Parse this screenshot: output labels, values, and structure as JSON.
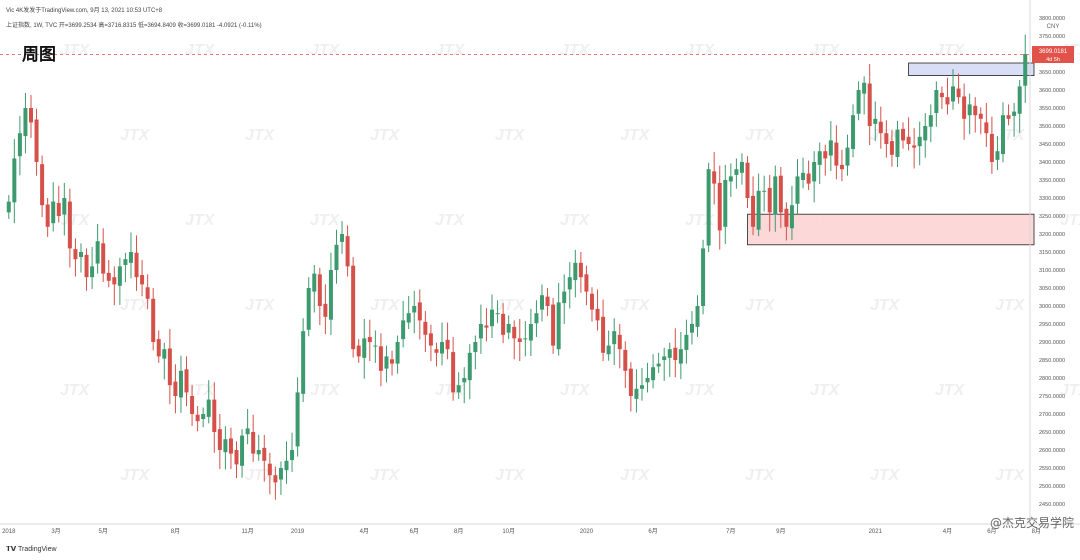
{
  "header": {
    "title": "Vic 4K发发于TradingView.com, 9月 13, 2021 10:53 UTC+8",
    "ohlc": "上证指数, 1W, TVC 开=3699.2534 高=3716.8315 低=3694.8409 收=3699.0181 -4.0921 (-0.11%)"
  },
  "chart_label": "周图",
  "price_tag": {
    "value": "3699.0181",
    "sub": "4d 5h"
  },
  "currency": "CNY",
  "footer": {
    "logo": "TradingView",
    "watermark": "@杰克交易学院"
  },
  "colors": {
    "up": "#3d9a6e",
    "down": "#d6504a",
    "zone_top": "#c9cff1",
    "zone_bottom": "#fcd4d4",
    "last_line": "#e0524a"
  },
  "chart_data": {
    "type": "candlestick",
    "ylim": [
      2400,
      3800
    ],
    "yticks": [
      2450,
      2500,
      2550,
      2600,
      2650,
      2700,
      2750,
      2800,
      2850,
      2900,
      2950,
      3000,
      3050,
      3100,
      3150,
      3200,
      3250,
      3300,
      3350,
      3400,
      3450,
      3500,
      3550,
      3600,
      3650,
      3700,
      3750,
      3800
    ],
    "xticks": [
      {
        "label": "2018",
        "x": 0
      },
      {
        "label": "3月",
        "x": 8.5
      },
      {
        "label": "5月",
        "x": 17
      },
      {
        "label": "8月",
        "x": 30
      },
      {
        "label": "11月",
        "x": 43
      },
      {
        "label": "2019",
        "x": 52
      },
      {
        "label": "4月",
        "x": 64
      },
      {
        "label": "6月",
        "x": 73
      },
      {
        "label": "8月",
        "x": 81
      },
      {
        "label": "10月",
        "x": 90
      },
      {
        "label": "2020",
        "x": 104
      },
      {
        "label": "6月",
        "x": 116
      },
      {
        "label": "7月",
        "x": 130
      },
      {
        "label": "9月",
        "x": 139
      },
      {
        "label": "2021",
        "x": 156
      },
      {
        "label": "4月",
        "x": 169
      },
      {
        "label": "6月",
        "x": 177
      },
      {
        "label": "8月",
        "x": 185
      }
    ],
    "zones": [
      {
        "name": "resistance",
        "y1": 3640,
        "y2": 3675,
        "x1": 162,
        "x2": 206
      },
      {
        "name": "support",
        "y1": 3170,
        "y2": 3255,
        "x1": 133,
        "x2": 206
      }
    ],
    "last_price": 3699.0181,
    "closes": [
      3290,
      3410,
      3480,
      3550,
      3510,
      3400,
      3280,
      3220,
      3290,
      3250,
      3300,
      3160,
      3130,
      3150,
      3080,
      3110,
      3180,
      3090,
      3070,
      3060,
      3110,
      3130,
      3150,
      3080,
      3060,
      3020,
      2900,
      2860,
      2880,
      2780,
      2750,
      2820,
      2760,
      2700,
      2680,
      2700,
      2740,
      2650,
      2600,
      2630,
      2590,
      2560,
      2640,
      2660,
      2590,
      2600,
      2570,
      2530,
      2510,
      2550,
      2570,
      2600,
      2760,
      2930,
      3050,
      3090,
      3000,
      2970,
      3100,
      3170,
      3200,
      3110,
      2880,
      2860,
      2910,
      2900,
      2890,
      2820,
      2860,
      2840,
      2900,
      2960,
      2980,
      3000,
      2960,
      2920,
      2890,
      2870,
      2900,
      2880,
      2760,
      2780,
      2800,
      2870,
      2900,
      2950,
      2940,
      2990,
      2980,
      2920,
      2950,
      2910,
      2900,
      2910,
      2950,
      2980,
      3030,
      3000,
      2890,
      3010,
      3040,
      3080,
      3120,
      3080,
      3040,
      2990,
      2960,
      2870,
      2890,
      2930,
      2880,
      2820,
      2750,
      2770,
      2780,
      2800,
      2830,
      2840,
      2860,
      2880,
      2850,
      2880,
      2920,
      2950,
      3000,
      3160,
      3380,
      3340,
      3210,
      3350,
      3360,
      3380,
      3400,
      3300,
      3220,
      3320,
      3320,
      3260,
      3360,
      3260,
      3220,
      3280,
      3360,
      3370,
      3340,
      3400,
      3430,
      3410,
      3460,
      3390,
      3380,
      3440,
      3530,
      3600,
      3620,
      3500,
      3520,
      3480,
      3450,
      3420,
      3490,
      3460,
      3450,
      3440,
      3470,
      3500,
      3530,
      3600,
      3580,
      3560,
      3610,
      3580,
      3520,
      3560,
      3530,
      3520,
      3480,
      3400,
      3430,
      3530,
      3520,
      3540,
      3610,
      3700
    ]
  }
}
